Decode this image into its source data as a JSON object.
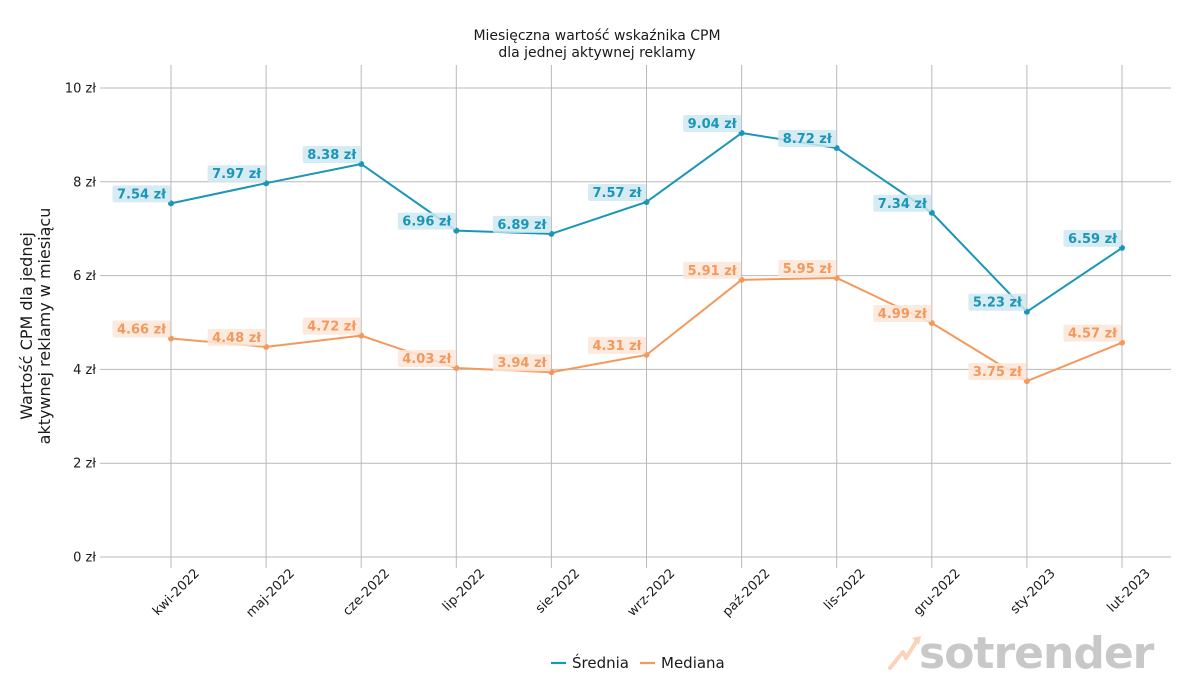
{
  "chart_data": {
    "type": "line",
    "title": "Miesięczna wartość wskaźnika CPM\ndla jednej aktywnej reklamy",
    "title_lines": [
      "Miesięczna wartość wskaźnika CPM",
      "dla jednej aktywnej reklamy"
    ],
    "xlabel": "",
    "ylabel": "Wartość CPM dla jednej\naktywnej reklamy w miesiącu",
    "ylabel_lines": [
      "Wartość CPM dla jednej",
      "aktywnej reklamy w miesiącu"
    ],
    "categories": [
      "kwi-2022",
      "maj-2022",
      "cze-2022",
      "lip-2022",
      "sie-2022",
      "wrz-2022",
      "paź-2022",
      "lis-2022",
      "gru-2022",
      "sty-2023",
      "lut-2023"
    ],
    "series": [
      {
        "name": "Średnia",
        "color": "#1a96b8",
        "label_bg": "#cfe8f0",
        "values": [
          7.54,
          7.97,
          8.38,
          6.96,
          6.89,
          7.57,
          9.04,
          8.72,
          7.34,
          5.23,
          6.59
        ],
        "labels": [
          "7.54 zł",
          "7.97 zł",
          "8.38 zł",
          "6.96 zł",
          "6.89 zł",
          "7.57 zł",
          "9.04 zł",
          "8.72 zł",
          "7.34 zł",
          "5.23 zł",
          "6.59 zł"
        ]
      },
      {
        "name": "Mediana",
        "color": "#f4995e",
        "label_bg": "#fce6d8",
        "values": [
          4.66,
          4.48,
          4.72,
          4.03,
          3.94,
          4.31,
          5.91,
          5.95,
          4.99,
          3.75,
          4.57
        ],
        "labels": [
          "4.66 zł",
          "4.48 zł",
          "4.72 zł",
          "4.03 zł",
          "3.94 zł",
          "4.31 zł",
          "5.91 zł",
          "5.95 zł",
          "4.99 zł",
          "3.75 zł",
          "4.57 zł"
        ]
      }
    ],
    "yticks": [
      0,
      2,
      4,
      6,
      8,
      10
    ],
    "ytick_labels": [
      "0 zł",
      "2 zł",
      "4 zł",
      "6 zł",
      "8 zł",
      "10 zł"
    ],
    "ylim": [
      0,
      10.5
    ],
    "grid": true,
    "legend_position": "bottom-center"
  },
  "watermark": {
    "text": "sotrender",
    "icon": "trend-arrow-icon"
  }
}
